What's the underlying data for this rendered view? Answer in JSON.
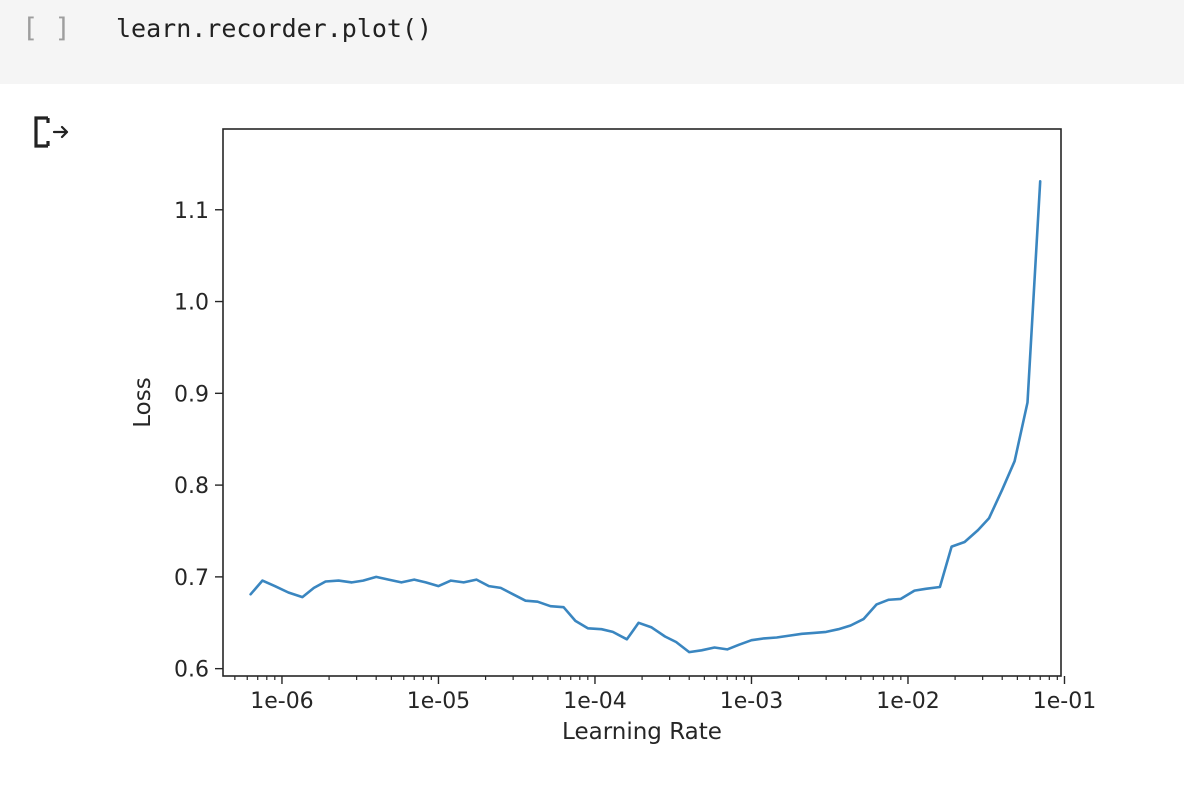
{
  "cell": {
    "prompt": "[ ]",
    "code": "learn.recorder.plot()"
  },
  "icons": {
    "output_toggle": "output-redirect-icon"
  },
  "chart_data": {
    "type": "line",
    "title": "",
    "xlabel": "Learning Rate",
    "ylabel": "Loss",
    "xscale": "log",
    "xlim": [
      4.2e-07,
      0.095
    ],
    "ylim": [
      0.592,
      1.188
    ],
    "xticks": [
      1e-06,
      1e-05,
      0.0001,
      0.001,
      0.01,
      0.1
    ],
    "xtick_labels": [
      "1e-06",
      "1e-05",
      "1e-04",
      "1e-03",
      "1e-02",
      "1e-01"
    ],
    "yticks": [
      0.6,
      0.7,
      0.8,
      0.9,
      1.0,
      1.1
    ],
    "ytick_labels": [
      "0.6",
      "0.7",
      "0.8",
      "0.9",
      "1.0",
      "1.1"
    ],
    "grid": false,
    "line_color": "#3a86c0",
    "series": [
      {
        "x": [
          6.3e-07,
          7.5e-07,
          9e-07,
          1.1e-06,
          1.35e-06,
          1.6e-06,
          1.9e-06,
          2.3e-06,
          2.8e-06,
          3.3e-06,
          4e-06,
          4.8e-06,
          5.8e-06,
          7e-06,
          8.3e-06,
          1e-05,
          1.2e-05,
          1.45e-05,
          1.75e-05,
          2.1e-05,
          2.5e-05,
          3e-05,
          3.6e-05,
          4.3e-05,
          5.2e-05,
          6.3e-05,
          7.5e-05,
          9e-05,
          0.00011,
          0.00013,
          0.00016,
          0.00019,
          0.00023,
          0.00028,
          0.00033,
          0.0004,
          0.00048,
          0.00058,
          0.0007,
          0.00083,
          0.001,
          0.0012,
          0.00145,
          0.00175,
          0.0021,
          0.0025,
          0.003,
          0.0036,
          0.0043,
          0.0052,
          0.0063,
          0.0075,
          0.009,
          0.011,
          0.013,
          0.016,
          0.019,
          0.023,
          0.028,
          0.033,
          0.04,
          0.048,
          0.058,
          0.07
        ],
        "y": [
          0.681,
          0.696,
          0.69,
          0.683,
          0.678,
          0.688,
          0.695,
          0.696,
          0.694,
          0.696,
          0.7,
          0.697,
          0.694,
          0.697,
          0.694,
          0.69,
          0.696,
          0.694,
          0.697,
          0.69,
          0.688,
          0.681,
          0.674,
          0.673,
          0.668,
          0.667,
          0.652,
          0.644,
          0.643,
          0.64,
          0.632,
          0.65,
          0.645,
          0.635,
          0.629,
          0.618,
          0.62,
          0.623,
          0.621,
          0.626,
          0.631,
          0.633,
          0.634,
          0.636,
          0.638,
          0.639,
          0.64,
          0.643,
          0.647,
          0.654,
          0.67,
          0.675,
          0.676,
          0.685,
          0.687,
          0.689,
          0.733,
          0.738,
          0.751,
          0.764,
          0.795,
          0.826,
          0.89,
          1.131
        ]
      }
    ]
  }
}
